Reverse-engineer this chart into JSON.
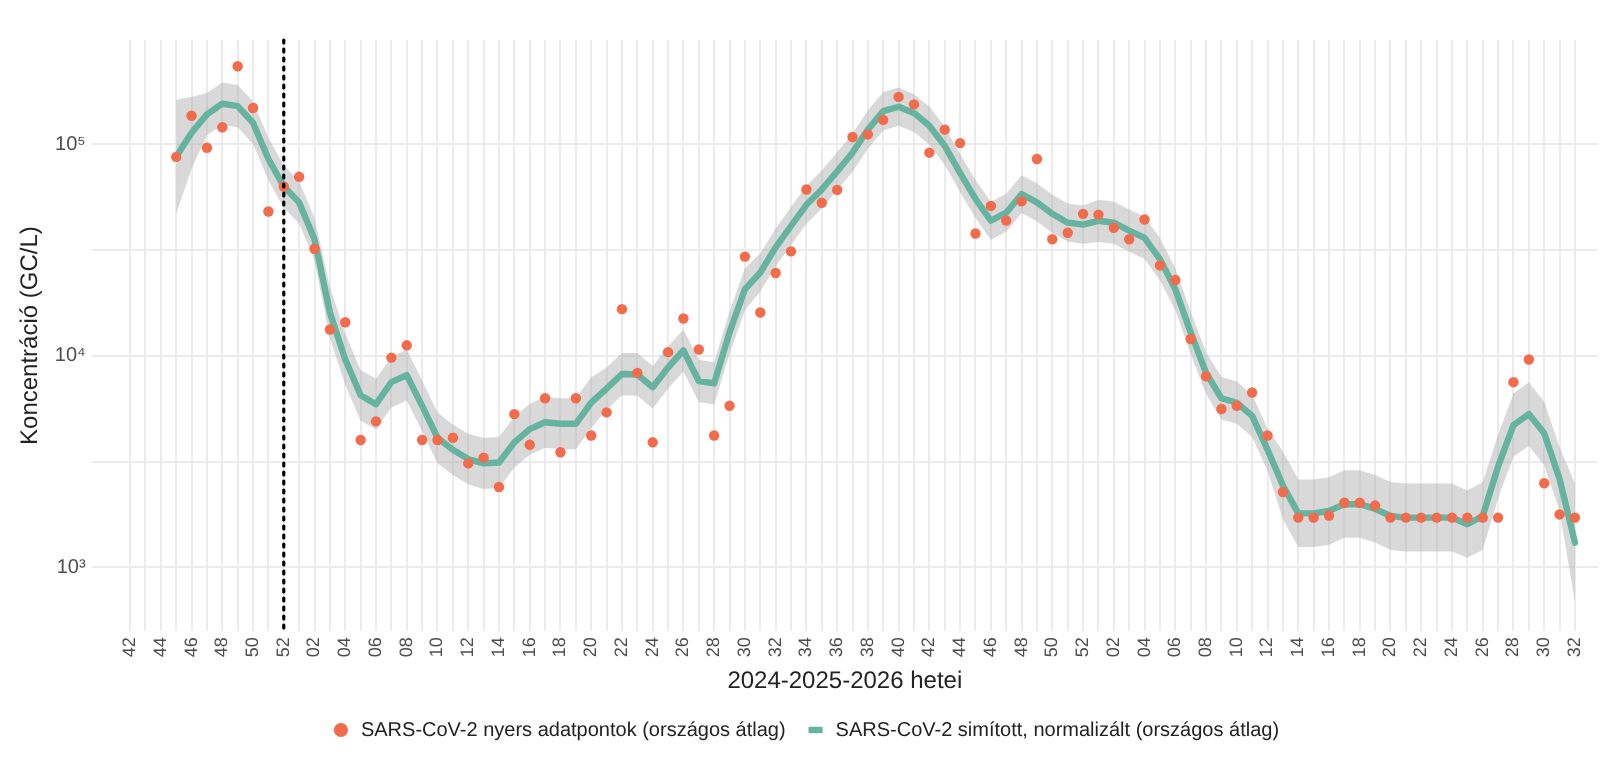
{
  "chart_data": {
    "type": "line",
    "xlabel": "2024-2025-2026 hetei",
    "ylabel": "Koncentráció (GC/L)",
    "log": "y",
    "grid": true,
    "legend": "bottom",
    "ref_lines": [
      {
        "axis": "x",
        "value": "52",
        "line_style": "dotted",
        "color": "#000000"
      }
    ],
    "categories": [
      "42",
      null,
      "44",
      null,
      "46",
      null,
      "48",
      null,
      "50",
      null,
      "52",
      null,
      "02",
      null,
      "04",
      null,
      "06",
      null,
      "08",
      null,
      "10",
      null,
      "12",
      null,
      "14",
      null,
      "16",
      null,
      "18",
      null,
      "20",
      null,
      "22",
      null,
      "24",
      null,
      "26",
      null,
      "28",
      null,
      "30",
      null,
      "32",
      null,
      "34",
      null,
      "36",
      null,
      "38",
      null,
      "40",
      null,
      "42",
      null,
      "44",
      null,
      "46",
      null,
      "48",
      null,
      "50",
      null,
      "52",
      null,
      "02",
      null,
      "04",
      null,
      "06",
      null,
      "08",
      null,
      "10",
      null,
      "12",
      null,
      "14",
      null,
      "16",
      null,
      "18",
      null,
      "20",
      null,
      "22",
      null,
      "24",
      null,
      "26",
      null,
      "28",
      null,
      "30",
      null,
      "32"
    ],
    "ylim": [
      500,
      310000
    ],
    "yticks": [
      {
        "value": 1000,
        "label": "10³"
      },
      {
        "value": 3162,
        "label": null
      },
      {
        "value": 10000,
        "label": "10⁴"
      },
      {
        "value": 31623,
        "label": null
      },
      {
        "value": 100000,
        "label": "10⁵"
      }
    ],
    "series": [
      {
        "name": "SARS-CoV-2 nyers adatpontok (országos átlag)",
        "type": "scatter",
        "color": "#f26b4b",
        "values": [
          null,
          null,
          null,
          87000,
          136000,
          96000,
          120000,
          233000,
          148000,
          48000,
          63000,
          70000,
          32000,
          13300,
          14400,
          4000,
          4900,
          9800,
          11200,
          4000,
          4000,
          4100,
          3100,
          3300,
          2400,
          5300,
          3800,
          6300,
          3500,
          6300,
          4200,
          5400,
          16600,
          8300,
          3900,
          10400,
          15000,
          10700,
          4200,
          5800,
          29400,
          16000,
          24600,
          31100,
          61000,
          52800,
          60700,
          108000,
          111000,
          130000,
          167000,
          154000,
          91000,
          117000,
          101000,
          37800,
          51000,
          43500,
          53600,
          85000,
          35500,
          38100,
          46800,
          46400,
          40200,
          35500,
          44000,
          26700,
          22800,
          12000,
          8000,
          5600,
          5800,
          6700,
          4200,
          2270,
          1720,
          1720,
          1760,
          2020,
          2020,
          1960,
          1720,
          1720,
          1720,
          1720,
          1720,
          1720,
          1720,
          1720,
          7500,
          9600,
          2500,
          1780,
          1720
        ]
      },
      {
        "name": "SARS-CoV-2 simított, normalizált (országos átlag)",
        "color": "#66b3a0",
        "values": [
          null,
          null,
          null,
          87000,
          113000,
          138000,
          155000,
          151000,
          126000,
          85000,
          63000,
          53000,
          35500,
          16000,
          9600,
          6500,
          5900,
          7500,
          8100,
          5800,
          4100,
          3600,
          3250,
          3100,
          3130,
          3900,
          4500,
          4850,
          4770,
          4770,
          6000,
          7000,
          8200,
          8150,
          7100,
          8800,
          10600,
          7600,
          7400,
          12900,
          20600,
          24700,
          32500,
          41000,
          51600,
          61000,
          74300,
          91000,
          117000,
          143000,
          150000,
          140000,
          122000,
          98000,
          73000,
          55000,
          43400,
          47400,
          58000,
          53000,
          46800,
          42500,
          41600,
          43400,
          42500,
          39000,
          36000,
          28600,
          20600,
          12900,
          8300,
          6300,
          6000,
          5200,
          3600,
          2440,
          1800,
          1800,
          1850,
          1990,
          1990,
          1890,
          1750,
          1720,
          1720,
          1720,
          1720,
          1600,
          1750,
          3000,
          4700,
          5300,
          4300,
          2620,
          1310
        ],
        "lower": [
          null,
          null,
          null,
          46700,
          76400,
          110000,
          123000,
          120000,
          100000,
          67500,
          50000,
          42100,
          28200,
          12100,
          7280,
          4930,
          4480,
          5690,
          6150,
          4400,
          3110,
          2730,
          2470,
          2350,
          2370,
          2960,
          3410,
          3680,
          3620,
          3620,
          4550,
          5560,
          6510,
          6470,
          5640,
          6990,
          8420,
          6040,
          5880,
          10200,
          16400,
          20100,
          26400,
          33300,
          42000,
          49600,
          60400,
          74000,
          95100,
          116000,
          122000,
          114000,
          99200,
          79700,
          59300,
          44700,
          35300,
          38500,
          47200,
          43100,
          38000,
          34600,
          33800,
          34500,
          33800,
          31000,
          28600,
          22700,
          16400,
          10200,
          6590,
          5000,
          4770,
          4130,
          2860,
          1690,
          1250,
          1250,
          1280,
          1380,
          1380,
          1310,
          1210,
          1190,
          1190,
          1190,
          1190,
          1110,
          1210,
          2120,
          3330,
          3750,
          3040,
          1850,
          688
        ],
        "upper": [
          null,
          null,
          null,
          162000,
          167000,
          174000,
          195000,
          190000,
          159000,
          107000,
          79300,
          66700,
          44700,
          21100,
          12700,
          8570,
          7780,
          9890,
          10700,
          7640,
          5400,
          4740,
          4280,
          4090,
          4130,
          5140,
          5930,
          6390,
          6290,
          6290,
          7910,
          8810,
          10300,
          10300,
          8940,
          11100,
          13300,
          9570,
          9320,
          16200,
          25900,
          30400,
          40000,
          50400,
          63500,
          75000,
          91400,
          112000,
          144000,
          176000,
          185000,
          172000,
          150000,
          121000,
          89800,
          67700,
          53400,
          58300,
          71300,
          65200,
          57600,
          52300,
          51200,
          54600,
          53500,
          49100,
          45300,
          36000,
          25900,
          16200,
          10400,
          7930,
          7550,
          6550,
          4530,
          3530,
          2600,
          2600,
          2670,
          2880,
          2880,
          2730,
          2530,
          2490,
          2490,
          2490,
          2490,
          2310,
          2530,
          4240,
          6640,
          7490,
          6080,
          3700,
          2500
        ]
      }
    ]
  }
}
